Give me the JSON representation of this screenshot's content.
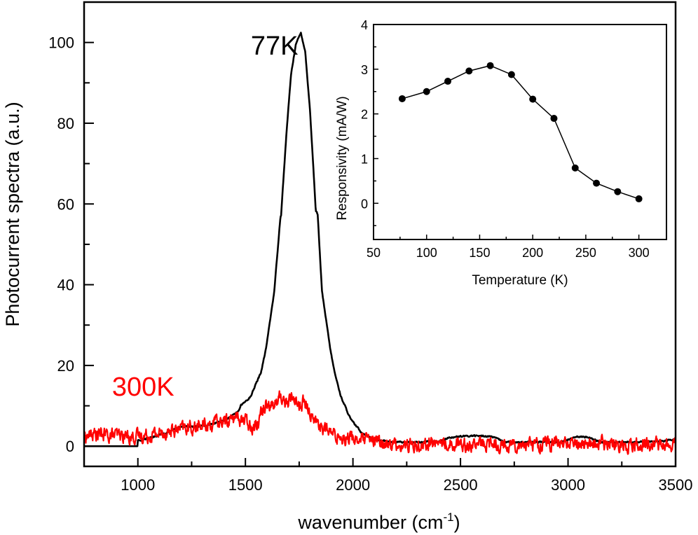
{
  "chart_data": [
    {
      "type": "line",
      "name": "main",
      "xlabel": "wavenumber (cm",
      "xlabel_sup": "-1",
      "xlabel_close": ")",
      "ylabel": "Photocurrent spectra (a.u.)",
      "xlim": [
        750,
        3500
      ],
      "ylim": [
        -5,
        110
      ],
      "x_ticks": [
        1000,
        1500,
        2000,
        2500,
        3000,
        3500
      ],
      "x_tick_labels": [
        "1000",
        "1500",
        "2000",
        "2500",
        "3000",
        "3500"
      ],
      "x_minor_ticks": [
        1250,
        1750,
        2250,
        2750,
        3250
      ],
      "y_ticks": [
        0,
        20,
        40,
        60,
        80,
        100
      ],
      "y_tick_labels": [
        "0",
        "20",
        "40",
        "60",
        "80",
        "100"
      ],
      "y_minor_ticks": [
        10,
        30,
        50,
        70,
        90
      ],
      "grid": false,
      "series": [
        {
          "name": "77K",
          "color": "#000000",
          "noise": 0.15,
          "x": [
            750,
            998,
            1000,
            1050,
            1150,
            1200,
            1310,
            1337,
            1400,
            1444,
            1471,
            1477,
            1526,
            1533,
            1572,
            1595,
            1634,
            1663,
            1666,
            1691,
            1712,
            1734,
            1758,
            1778,
            1800,
            1816,
            1827,
            1836,
            1856,
            1895,
            1915,
            1944,
            1990,
            2040,
            2098,
            2186,
            2317,
            2400,
            2450,
            2560,
            2643,
            2709,
            2850,
            2970,
            3036,
            3100,
            3150,
            3300,
            3450,
            3500
          ],
          "y": [
            0,
            0,
            1.4,
            2.0,
            3.6,
            4.8,
            5.0,
            5.4,
            6.3,
            7.7,
            8.9,
            10.0,
            12.3,
            13.5,
            18.2,
            23.9,
            38.3,
            57.0,
            57.4,
            77.6,
            92.0,
            99.5,
            102.4,
            97.8,
            83.4,
            68.9,
            58.5,
            57.4,
            38.3,
            23.9,
            18.2,
            12.3,
            6.6,
            3.4,
            1.7,
            1.0,
            1.0,
            1.2,
            2.2,
            2.6,
            2.4,
            1.0,
            1.0,
            1.0,
            2.4,
            2.2,
            1.0,
            1.0,
            1.3,
            1.7
          ]
        },
        {
          "name": "300K",
          "color": "#ff0000",
          "noise": 1.4,
          "x": [
            750,
            800,
            900,
            1000,
            1100,
            1200,
            1300,
            1400,
            1467,
            1533,
            1555,
            1598,
            1631,
            1663,
            1696,
            1722,
            1752,
            1768,
            1817,
            1843,
            1860,
            1915,
            2013,
            2100,
            2242,
            2400,
            2600,
            2800,
            3000,
            3200,
            3400,
            3500
          ],
          "y": [
            2.5,
            3.0,
            2.6,
            2.4,
            3.2,
            4.2,
            5.0,
            6.2,
            7.1,
            5.2,
            6.0,
            11.4,
            9.7,
            12.3,
            10.6,
            12.6,
            9.7,
            10.9,
            7.1,
            5.4,
            4.5,
            2.6,
            1.9,
            1.0,
            0.2,
            0.8,
            0.4,
            0.6,
            0.6,
            0.5,
            0.5,
            0.2
          ]
        }
      ],
      "annotations": [
        {
          "text": "77K",
          "color": "#000000",
          "x": 1525,
          "y": 97
        },
        {
          "text": "300K",
          "color": "#ff0000",
          "x": 880,
          "y": 12.5
        }
      ]
    },
    {
      "type": "line",
      "name": "inset",
      "xlabel": "Temperature (K)",
      "ylabel": "Responsivity (mA/W)",
      "xlim": [
        50,
        326
      ],
      "ylim": [
        -0.81,
        4
      ],
      "x_ticks": [
        50,
        100,
        150,
        200,
        250,
        300
      ],
      "x_tick_labels": [
        "50",
        "100",
        "150",
        "200",
        "250",
        "300"
      ],
      "x_minor_ticks": [
        75,
        125,
        175,
        225,
        275
      ],
      "y_ticks": [
        0,
        1,
        2,
        3,
        4
      ],
      "y_tick_labels": [
        "0",
        "1",
        "2",
        "3",
        "4"
      ],
      "y_minor_ticks": [
        -0.5,
        0.5,
        1.5,
        2.5,
        3.5
      ],
      "grid": false,
      "marker": "circle",
      "series": [
        {
          "name": "Responsivity",
          "color": "#000000",
          "x": [
            77,
            100,
            120,
            140,
            160,
            180,
            200,
            220,
            240,
            260,
            280,
            300
          ],
          "y": [
            2.34,
            2.5,
            2.73,
            2.96,
            3.08,
            2.88,
            2.33,
            1.9,
            0.79,
            0.45,
            0.26,
            0.1
          ]
        }
      ]
    }
  ]
}
